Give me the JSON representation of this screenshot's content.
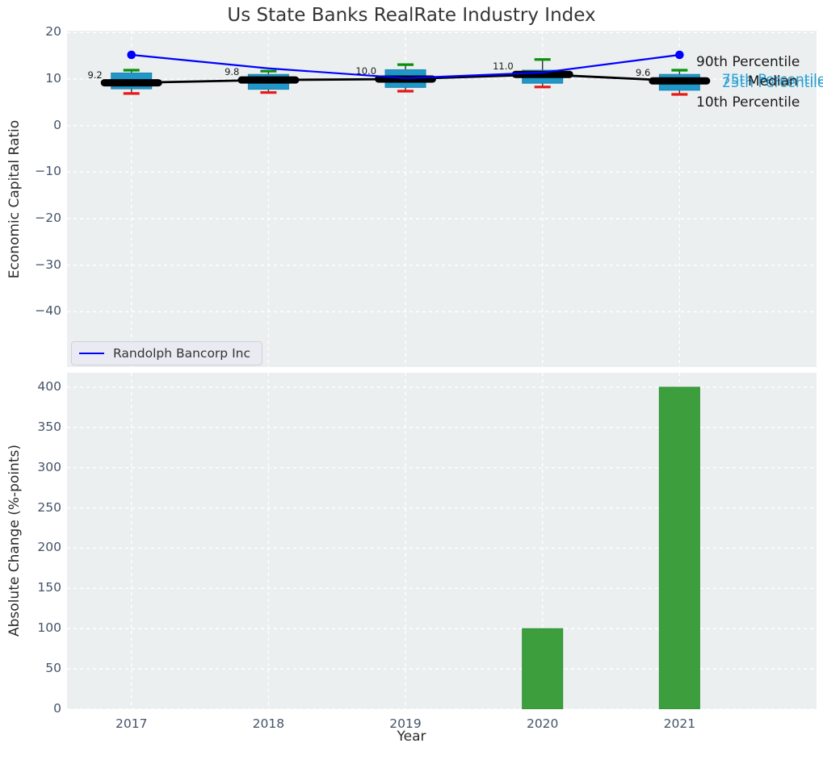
{
  "title": "Us State Banks RealRate Industry Index",
  "colors": {
    "plot_bg": "#ebeff0",
    "grid": "#ffffff",
    "tick": "#44536a",
    "axis_label": "#2b2b2b",
    "title": "#363636",
    "box_fill": "#2196c8",
    "box_edge": "#1b85b0",
    "median": "#000000",
    "whisker": "#303030",
    "cap_high": "#0a8f0a",
    "cap_low": "#ea1515",
    "line": "#0000ff",
    "bar": "#3d9e3e",
    "bar_edge": "#2e8f33",
    "cyan_text": "#2aa0d2",
    "black_text": "#1a1a1a"
  },
  "chart_data": [
    {
      "type": "boxplot",
      "title": "Us State Banks RealRate Industry Index",
      "ylabel": "Economic Capital Ratio",
      "categories": [
        "2017",
        "2018",
        "2019",
        "2020",
        "2021"
      ],
      "ylim": [
        -51.9,
        20.4
      ],
      "xlim_years": [
        2016.53,
        2022.0
      ],
      "grid": true,
      "ytick_values": [
        20,
        10,
        0,
        -10,
        -20,
        -30,
        -40
      ],
      "ytick_labels": [
        "20",
        "10",
        "0",
        "−10",
        "−20",
        "−30",
        "−40"
      ],
      "boxes": [
        {
          "category": "2017",
          "whisker_low": 6.9,
          "q1": 7.9,
          "median": 9.2,
          "q3": 11.3,
          "whisker_high": 11.9,
          "label": "9.2"
        },
        {
          "category": "2018",
          "whisker_low": 7.1,
          "q1": 7.8,
          "median": 9.8,
          "q3": 11.0,
          "whisker_high": 11.7,
          "label": "9.8"
        },
        {
          "category": "2019",
          "whisker_low": 7.4,
          "q1": 8.2,
          "median": 10.0,
          "q3": 12.0,
          "whisker_high": 13.1,
          "label": "10.0"
        },
        {
          "category": "2020",
          "whisker_low": 8.3,
          "q1": 9.1,
          "median": 11.0,
          "q3": 11.9,
          "whisker_high": 14.2,
          "label": "11.0"
        },
        {
          "category": "2021",
          "whisker_low": 6.7,
          "q1": 7.6,
          "median": 9.6,
          "q3": 11.0,
          "whisker_high": 11.9,
          "label": "9.6"
        }
      ],
      "series": [
        {
          "name": "Randolph Bancorp Inc",
          "values": [
            15.2,
            12.3,
            10.2,
            11.4,
            15.2
          ],
          "color": "#0000ff",
          "markers": "endpoints"
        }
      ],
      "percentile_labels": [
        {
          "text": "90th Percentile",
          "color": "#1a1a1a"
        },
        {
          "text": "75th Percentile",
          "color": "#2aa0d2"
        },
        {
          "text": "25th Percentile",
          "color": "#2aa0d2"
        },
        {
          "text": "Median",
          "color": "#1a1a1a"
        },
        {
          "text": "10th Percentile",
          "color": "#1a1a1a"
        }
      ],
      "legend": {
        "position": "lower left",
        "entries": [
          {
            "label": "Randolph Bancorp Inc",
            "color": "#0000ff"
          }
        ]
      }
    },
    {
      "type": "bar",
      "ylabel": "Absolute Change (%-points)",
      "xlabel": "Year",
      "categories": [
        "2017",
        "2018",
        "2019",
        "2020",
        "2021"
      ],
      "values": [
        0,
        0,
        0,
        100,
        400
      ],
      "ylim": [
        0,
        418
      ],
      "ytick_values": [
        0,
        50,
        100,
        150,
        200,
        250,
        300,
        350,
        400
      ],
      "ytick_labels": [
        "0",
        "50",
        "100",
        "150",
        "200",
        "250",
        "300",
        "350",
        "400"
      ],
      "grid": true
    }
  ]
}
